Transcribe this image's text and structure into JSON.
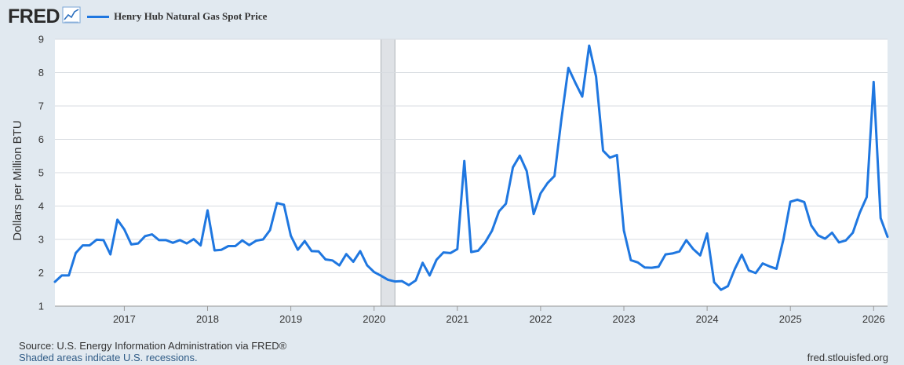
{
  "header": {
    "logo_text": "FRED",
    "logo_icon": "trend-chart-icon",
    "legend_label": "Henry Hub Natural Gas Spot Price"
  },
  "colors": {
    "series": "#1f77e0",
    "background": "#e1e9f0",
    "plot_bg": "#ffffff",
    "recession": "#dfe2e6"
  },
  "footer": {
    "source": "Source: U.S. Energy Information Administration via FRED®",
    "recession_note": "Shaded areas indicate U.S. recessions.",
    "url": "fred.stlouisfed.org"
  },
  "chart_data": {
    "type": "line",
    "title": "",
    "xlabel": "",
    "ylabel": "Dollars per Million BTU",
    "ylim": [
      1,
      9
    ],
    "xlim": [
      "2016-03",
      "2026-03"
    ],
    "y_ticks": [
      1,
      2,
      3,
      4,
      5,
      6,
      7,
      8,
      9
    ],
    "x_ticks": [
      "2017",
      "2018",
      "2019",
      "2020",
      "2021",
      "2022",
      "2023",
      "2024",
      "2025",
      "2026"
    ],
    "grid": true,
    "recessions": [
      {
        "start": "2020-02",
        "end": "2020-04"
      }
    ],
    "series": [
      {
        "name": "Henry Hub Natural Gas Spot Price",
        "x": [
          "2016-03",
          "2016-04",
          "2016-05",
          "2016-06",
          "2016-07",
          "2016-08",
          "2016-09",
          "2016-10",
          "2016-11",
          "2016-12",
          "2017-01",
          "2017-02",
          "2017-03",
          "2017-04",
          "2017-05",
          "2017-06",
          "2017-07",
          "2017-08",
          "2017-09",
          "2017-10",
          "2017-11",
          "2017-12",
          "2018-01",
          "2018-02",
          "2018-03",
          "2018-04",
          "2018-05",
          "2018-06",
          "2018-07",
          "2018-08",
          "2018-09",
          "2018-10",
          "2018-11",
          "2018-12",
          "2019-01",
          "2019-02",
          "2019-03",
          "2019-04",
          "2019-05",
          "2019-06",
          "2019-07",
          "2019-08",
          "2019-09",
          "2019-10",
          "2019-11",
          "2019-12",
          "2020-01",
          "2020-02",
          "2020-03",
          "2020-04",
          "2020-05",
          "2020-06",
          "2020-07",
          "2020-08",
          "2020-09",
          "2020-10",
          "2020-11",
          "2020-12",
          "2021-01",
          "2021-02",
          "2021-03",
          "2021-04",
          "2021-05",
          "2021-06",
          "2021-07",
          "2021-08",
          "2021-09",
          "2021-10",
          "2021-11",
          "2021-12",
          "2022-01",
          "2022-02",
          "2022-03",
          "2022-04",
          "2022-05",
          "2022-06",
          "2022-07",
          "2022-08",
          "2022-09",
          "2022-10",
          "2022-11",
          "2022-12",
          "2023-01",
          "2023-02",
          "2023-03",
          "2023-04",
          "2023-05",
          "2023-06",
          "2023-07",
          "2023-08",
          "2023-09",
          "2023-10",
          "2023-11",
          "2023-12",
          "2024-01",
          "2024-02",
          "2024-03",
          "2024-04",
          "2024-05",
          "2024-06",
          "2024-07",
          "2024-08",
          "2024-09",
          "2024-10",
          "2024-11",
          "2024-12",
          "2025-01",
          "2025-02",
          "2025-03",
          "2025-04",
          "2025-05",
          "2025-06",
          "2025-07",
          "2025-08",
          "2025-09",
          "2025-10",
          "2025-11",
          "2025-12",
          "2026-01",
          "2026-02",
          "2026-03"
        ],
        "values": [
          1.73,
          1.92,
          1.92,
          2.59,
          2.82,
          2.82,
          2.99,
          2.98,
          2.55,
          3.59,
          3.3,
          2.85,
          2.88,
          3.1,
          3.15,
          2.98,
          2.98,
          2.9,
          2.98,
          2.88,
          3.01,
          2.82,
          3.87,
          2.67,
          2.69,
          2.8,
          2.8,
          2.97,
          2.83,
          2.96,
          3.0,
          3.28,
          4.09,
          4.04,
          3.11,
          2.69,
          2.95,
          2.65,
          2.64,
          2.4,
          2.37,
          2.22,
          2.56,
          2.33,
          2.65,
          2.22,
          2.02,
          1.91,
          1.79,
          1.74,
          1.75,
          1.63,
          1.77,
          2.3,
          1.92,
          2.39,
          2.61,
          2.59,
          2.71,
          5.35,
          2.62,
          2.66,
          2.91,
          3.26,
          3.84,
          4.07,
          5.16,
          5.51,
          5.05,
          3.76,
          4.38,
          4.69,
          4.9,
          6.6,
          8.14,
          7.7,
          7.28,
          8.81,
          7.88,
          5.66,
          5.45,
          5.53,
          3.27,
          2.38,
          2.31,
          2.16,
          2.15,
          2.18,
          2.55,
          2.58,
          2.64,
          2.98,
          2.71,
          2.52,
          3.18,
          1.72,
          1.49,
          1.6,
          2.12,
          2.54,
          2.07,
          1.99,
          2.28,
          2.19,
          2.12,
          3.01,
          4.13,
          4.19,
          4.12,
          3.42,
          3.12,
          3.02,
          3.2,
          2.91,
          2.97,
          3.2,
          3.8,
          4.27,
          7.72,
          3.64,
          3.08
        ]
      }
    ]
  }
}
